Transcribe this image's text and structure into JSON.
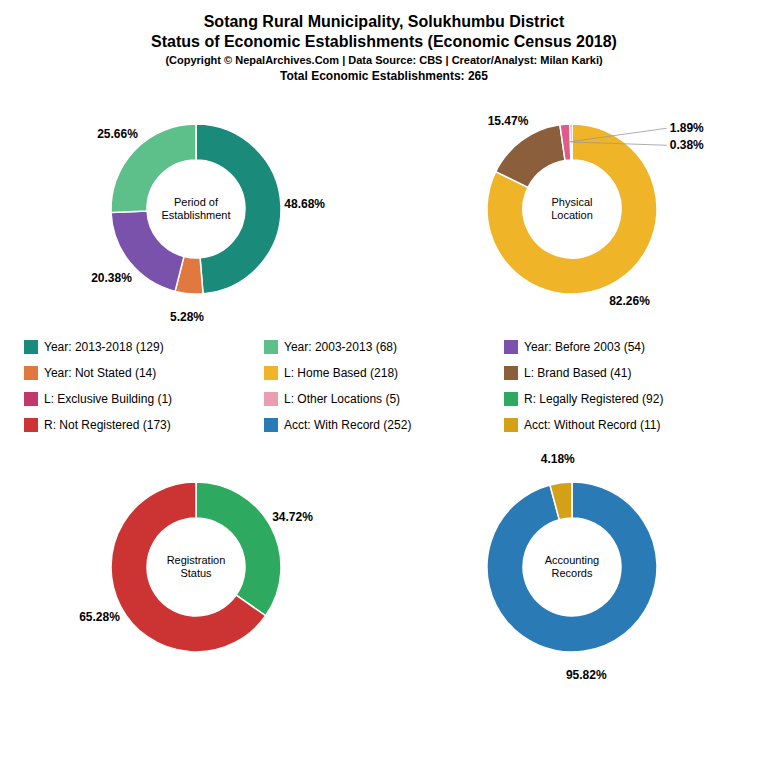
{
  "title": "Sotang Rural Municipality, Solukhumbu District\nStatus of Economic Establishments (Economic Census 2018)",
  "subtitle": "(Copyright © NepalArchives.Com | Data Source: CBS | Creator/Analyst: Milan Karki)\nTotal Economic Establishments: 265",
  "series": [
    {
      "name": "Year: 2013-2018 (129)",
      "color": "#1a8a7a"
    },
    {
      "name": "Year: 2003-2013 (68)",
      "color": "#5dbf8a"
    },
    {
      "name": "Year: Before 2003 (54)",
      "color": "#7b52ab"
    },
    {
      "name": "Year: Not Stated (14)",
      "color": "#e07840"
    },
    {
      "name": "L: Home Based (218)",
      "color": "#f0b429"
    },
    {
      "name": "L: Brand Based (41)",
      "color": "#8b5e3c"
    },
    {
      "name": "L: Exclusive Building (1)",
      "color": "#c0396e"
    },
    {
      "name": "L: Other Locations (5)",
      "color": "#e8a0b0"
    },
    {
      "name": "R: Legally Registered (92)",
      "color": "#2eaa60"
    },
    {
      "name": "R: Not Registered (173)",
      "color": "#cc3333"
    },
    {
      "name": "Acct: With Record (252)",
      "color": "#2a7ab5"
    },
    {
      "name": "Acct: Without Record (11)",
      "color": "#d4a017"
    }
  ],
  "chart_data": [
    {
      "type": "pie",
      "title": "Period of\nEstablishment",
      "values": [
        48.68,
        5.28,
        20.38,
        25.66
      ],
      "value_labels": [
        "48.68%",
        "5.28%",
        "20.38%",
        "25.66%"
      ],
      "colors": [
        "#1a8a7a",
        "#e07840",
        "#7b52ab",
        "#5dbf8a"
      ],
      "data_labels": true
    },
    {
      "type": "pie",
      "title": "Physical\nLocation",
      "values": [
        82.26,
        15.47,
        1.89,
        0.38
      ],
      "value_labels": [
        "82.26%",
        "15.47%",
        "1.89%",
        "0.38%"
      ],
      "colors": [
        "#f0b429",
        "#8b5e3c",
        "#e05a8a",
        "#5a3020"
      ],
      "data_labels": true
    },
    {
      "type": "pie",
      "title": "Registration\nStatus",
      "values": [
        34.72,
        65.28
      ],
      "value_labels": [
        "34.72%",
        "65.28%"
      ],
      "colors": [
        "#2eaa60",
        "#cc3333"
      ],
      "data_labels": true
    },
    {
      "type": "pie",
      "title": "Accounting\nRecords",
      "values": [
        95.82,
        4.18
      ],
      "value_labels": [
        "95.82%",
        "4.18%"
      ],
      "colors": [
        "#2a7ab5",
        "#d4a017"
      ],
      "data_labels": true
    }
  ]
}
